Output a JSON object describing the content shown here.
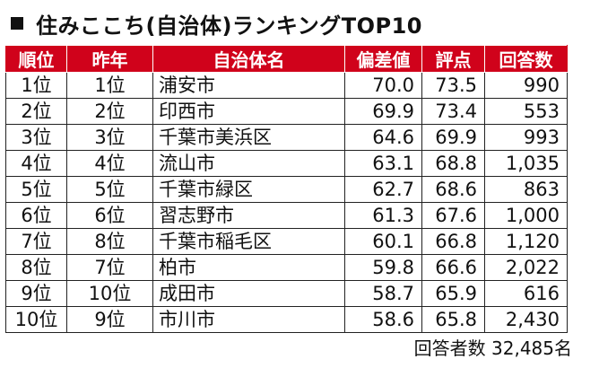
{
  "title": "住みここち(自治体)ランキングTOP10",
  "table": {
    "headers": [
      "順位",
      "昨年",
      "自治体名",
      "偏差値",
      "評点",
      "回答数"
    ],
    "rows": [
      [
        "1位",
        "1位",
        "浦安市",
        "70.0",
        "73.5",
        "990"
      ],
      [
        "2位",
        "2位",
        "印西市",
        "69.9",
        "73.4",
        "553"
      ],
      [
        "3位",
        "3位",
        "千葉市美浜区",
        "64.6",
        "69.9",
        "993"
      ],
      [
        "4位",
        "4位",
        "流山市",
        "63.1",
        "68.8",
        "1,035"
      ],
      [
        "5位",
        "5位",
        "千葉市緑区",
        "62.7",
        "68.6",
        "863"
      ],
      [
        "6位",
        "6位",
        "習志野市",
        "61.3",
        "67.6",
        "1,000"
      ],
      [
        "7位",
        "8位",
        "千葉市稲毛区",
        "60.1",
        "66.8",
        "1,120"
      ],
      [
        "8位",
        "7位",
        "柏市",
        "59.8",
        "66.6",
        "2,022"
      ],
      [
        "9位",
        "10位",
        "成田市",
        "58.7",
        "65.9",
        "616"
      ],
      [
        "10位",
        "9位",
        "市川市",
        "58.6",
        "65.8",
        "2,430"
      ]
    ]
  },
  "footer": "回答者数  32,485名",
  "colors": {
    "header_bg": "#d0021b",
    "header_text": "#ffffff",
    "text": "#111111"
  }
}
